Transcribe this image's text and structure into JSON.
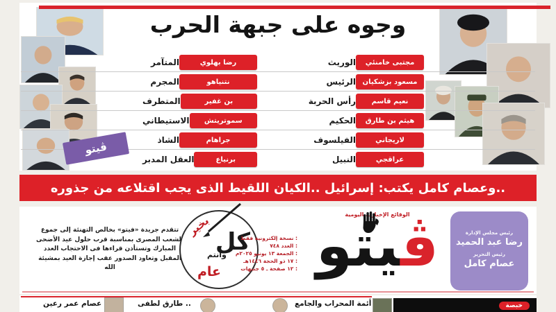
{
  "headline": "وجوه على جبهة الحرب",
  "war_front": {
    "left_column": [
      {
        "label": "المتآمر",
        "name": "رضا بهلوي"
      },
      {
        "label": "المجرم",
        "name": "نتنياهو"
      },
      {
        "label": "المتطرف",
        "name": "بن غفير"
      },
      {
        "label": "الاستيطاني",
        "name": "سموتريتش"
      },
      {
        "label": "الشاذ",
        "name": "جراهام"
      },
      {
        "label": "العقل المدبر",
        "name": "برنياع"
      }
    ],
    "right_column": [
      {
        "label": "الوريث",
        "name": "مجتبى خامنئي"
      },
      {
        "label": "الرئيس",
        "name": "مسعود بزشكيان"
      },
      {
        "label": "رأس الحربة",
        "name": "نعيم قاسم"
      },
      {
        "label": "الحكيم",
        "name": "هيثم بن طارق"
      },
      {
        "label": "الفيلسوف",
        "name": "لاريجاني"
      },
      {
        "label": "النبيل",
        "name": "عراقجي"
      }
    ]
  },
  "banner": {
    "text": "..وعصام كامل يكتب: إسرائيل ..الكيان اللقيط الذى يجب اقتلاعه من جذوره"
  },
  "masthead": {
    "logo_text": "ڤيتو",
    "logo_letter_red": "ڤ",
    "logo_letters_black": "يتو",
    "tagline": "الوقائع الإخبارية اليومية",
    "hand_icon": "stop-hand-icon",
    "issue_info": [
      ": نسخة إلكترونية فقط",
      ": العدد ٧٤٨",
      ": الجمعة ١٣ يونيو ٢٠٢٥م",
      ": ١٧ ذو الحجة ١٤٤٦هـ",
      ": ١٢ صفحة ـ ٥ جنيهات"
    ],
    "greeting": "تتقدم جريدة «فيتو» بخالص التهنئة إلى جموع الشعب المصرى بمناسبة قرب حلول عيد الأضحى المبارك وتستأذن قراءها فى الاحتجاب العدد المقبل وتعاود الصدور عقب إجازة العيد بمشيئة الله",
    "stamp": {
      "w1": "كل",
      "w2": "عام",
      "w3": "وأنتم",
      "w4": "بخير"
    },
    "board": {
      "chairman_title": "رئيس مجلس الإدارة",
      "chairman_name": "رضا عبد الحميد",
      "editor_title": "رئيس التحرير",
      "editor_name": "عصام كامل"
    }
  },
  "bottom_strip": {
    "teasers": [
      {
        "name": "عصام عمر رعين"
      },
      {
        "name": ".. طارق لطفى"
      },
      {
        "headline": "أئمة المحراب والجامع"
      },
      {
        "badge": "خبصة"
      }
    ]
  },
  "photos": {
    "left": [
      "trump",
      "netanyahu",
      "reza-pahlavi",
      "lindsey-graham",
      "ben-gvir",
      "smotrich"
    ],
    "right": [
      "mojtaba-khamenei",
      "masoud-pezeshkian",
      "naim-qassem",
      "irgc-commander",
      "qassem-soleimani"
    ]
  },
  "colors": {
    "red": "#dd2128",
    "purple": "#9c8bc8",
    "black": "#141414"
  }
}
